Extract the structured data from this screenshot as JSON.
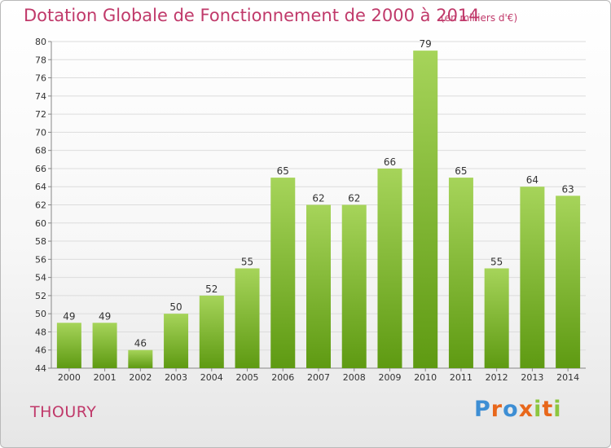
{
  "title": "Dotation Globale de Fonctionnement de 2000 à 2014",
  "subtitle": "(en milliers d'€)",
  "location": "THOURY",
  "logo": {
    "text": "Proxiti",
    "letter_colors": [
      "#3d8ed4",
      "#e8671b",
      "#3d8ed4",
      "#e8671b",
      "#8cc63f",
      "#e8671b",
      "#8cc63f"
    ]
  },
  "colors": {
    "title": "#c0396a",
    "bar_light": "#a6d45a",
    "bar_dark": "#5e9a12"
  },
  "chart_data": {
    "type": "bar",
    "categories": [
      "2000",
      "2001",
      "2002",
      "2003",
      "2004",
      "2005",
      "2006",
      "2007",
      "2008",
      "2009",
      "2010",
      "2011",
      "2012",
      "2013",
      "2014"
    ],
    "values": [
      49,
      49,
      46,
      50,
      52,
      55,
      65,
      62,
      62,
      66,
      79,
      65,
      55,
      64,
      63
    ],
    "ylim": [
      44,
      80
    ],
    "yticks": [
      44,
      46,
      48,
      50,
      52,
      54,
      56,
      58,
      60,
      62,
      64,
      66,
      68,
      70,
      72,
      74,
      76,
      78,
      80
    ],
    "grid": true,
    "legend": "none"
  }
}
